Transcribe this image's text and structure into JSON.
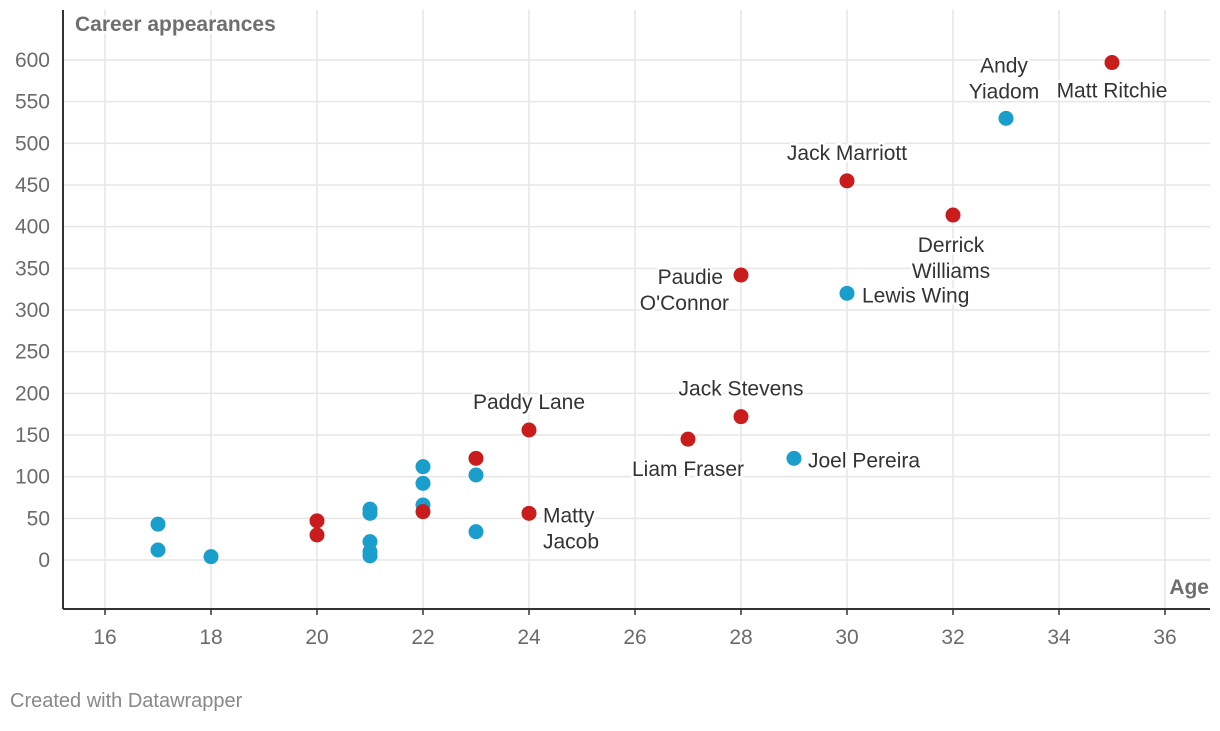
{
  "chart_data": {
    "type": "scatter",
    "ylabel": "Career appearances",
    "xlabel": "Age",
    "xlim": [
      15.2,
      37.3
    ],
    "ylim": [
      -60,
      640
    ],
    "x_ticks": [
      16,
      18,
      20,
      22,
      24,
      26,
      28,
      30,
      32,
      34,
      36
    ],
    "y_ticks": [
      0,
      50,
      100,
      150,
      200,
      250,
      300,
      350,
      400,
      450,
      500,
      550,
      600
    ],
    "grid": true,
    "colors": {
      "red": "#c91c1c",
      "blue": "#1a9fcc",
      "grid": "#e6e6e6",
      "axis": "#333333",
      "text": "#333333",
      "tick": "#6b6b6b"
    },
    "points": [
      {
        "x": 35,
        "y": 597,
        "color": "red",
        "label": "Matt Ritchie"
      },
      {
        "x": 33,
        "y": 530,
        "color": "blue",
        "label": "Andy Yiadom"
      },
      {
        "x": 30,
        "y": 455,
        "color": "red",
        "label": "Jack Marriott"
      },
      {
        "x": 32,
        "y": 414,
        "color": "red",
        "label": "Derrick Williams"
      },
      {
        "x": 28,
        "y": 342,
        "color": "red",
        "label": "Paudie O'Connor"
      },
      {
        "x": 30,
        "y": 320,
        "color": "blue",
        "label": "Lewis Wing"
      },
      {
        "x": 28,
        "y": 172,
        "color": "red",
        "label": "Jack Stevens"
      },
      {
        "x": 27,
        "y": 145,
        "color": "red",
        "label": "Liam Fraser"
      },
      {
        "x": 29,
        "y": 122,
        "color": "blue",
        "label": "Joel Pereira"
      },
      {
        "x": 24,
        "y": 156,
        "color": "red",
        "label": "Paddy Lane"
      },
      {
        "x": 24,
        "y": 56,
        "color": "red",
        "label": "Matty Jacob"
      },
      {
        "x": 23,
        "y": 122,
        "color": "red"
      },
      {
        "x": 23,
        "y": 102,
        "color": "blue"
      },
      {
        "x": 23,
        "y": 34,
        "color": "blue"
      },
      {
        "x": 22,
        "y": 112,
        "color": "blue"
      },
      {
        "x": 22,
        "y": 92,
        "color": "blue"
      },
      {
        "x": 22,
        "y": 66,
        "color": "blue"
      },
      {
        "x": 22,
        "y": 58,
        "color": "red"
      },
      {
        "x": 21,
        "y": 61,
        "color": "blue"
      },
      {
        "x": 21,
        "y": 56,
        "color": "blue"
      },
      {
        "x": 21,
        "y": 22,
        "color": "blue"
      },
      {
        "x": 21,
        "y": 10,
        "color": "blue"
      },
      {
        "x": 21,
        "y": 5,
        "color": "blue"
      },
      {
        "x": 20,
        "y": 47,
        "color": "red"
      },
      {
        "x": 20,
        "y": 30,
        "color": "red"
      },
      {
        "x": 18,
        "y": 4,
        "color": "blue"
      },
      {
        "x": 17,
        "y": 43,
        "color": "blue"
      },
      {
        "x": 17,
        "y": 12,
        "color": "blue"
      }
    ]
  },
  "footer": {
    "credit": "Created with Datawrapper"
  }
}
